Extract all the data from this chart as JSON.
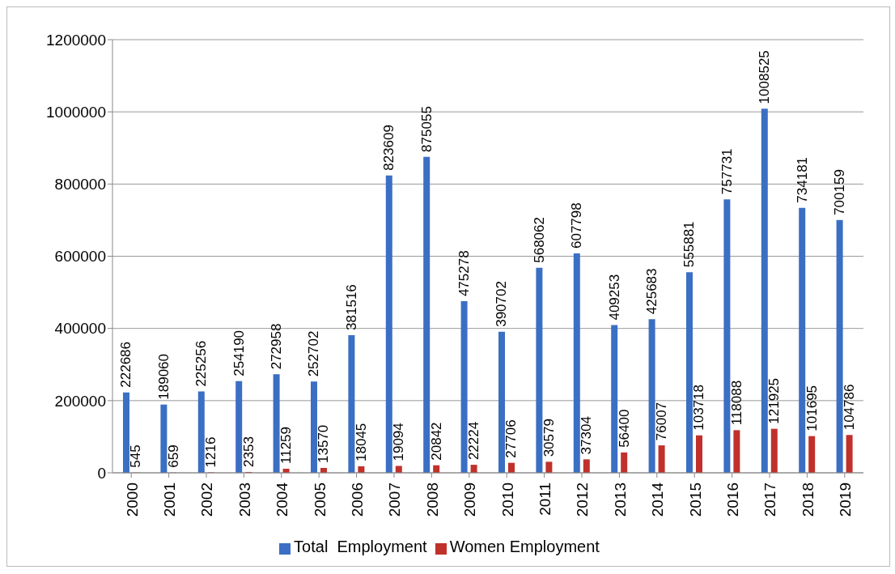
{
  "chart_data": {
    "type": "bar",
    "categories": [
      "2000",
      "2001",
      "2002",
      "2003",
      "2004",
      "2005",
      "2006",
      "2007",
      "2008",
      "2009",
      "2010",
      "2011",
      "2012",
      "2013",
      "2014",
      "2015",
      "2016",
      "2017",
      "2018",
      "2019"
    ],
    "series": [
      {
        "name": "Total  Employment",
        "color": "#3a6fc4",
        "values": [
          222686,
          189060,
          225256,
          254190,
          272958,
          252702,
          381516,
          823609,
          875055,
          475278,
          390702,
          568062,
          607798,
          409253,
          425683,
          555881,
          757731,
          1008525,
          734181,
          700159
        ]
      },
      {
        "name": "Women Employment",
        "color": "#c0312b",
        "values": [
          545,
          659,
          1216,
          2353,
          11259,
          13570,
          18045,
          19094,
          20842,
          22224,
          27706,
          30579,
          37304,
          56400,
          76007,
          103718,
          118088,
          121925,
          101695,
          104786
        ]
      }
    ],
    "ylim": [
      0,
      1200000
    ],
    "yticks": [
      0,
      200000,
      400000,
      600000,
      800000,
      1000000,
      1200000
    ],
    "grid": "y",
    "legend": "bottom",
    "data_labels": true
  }
}
